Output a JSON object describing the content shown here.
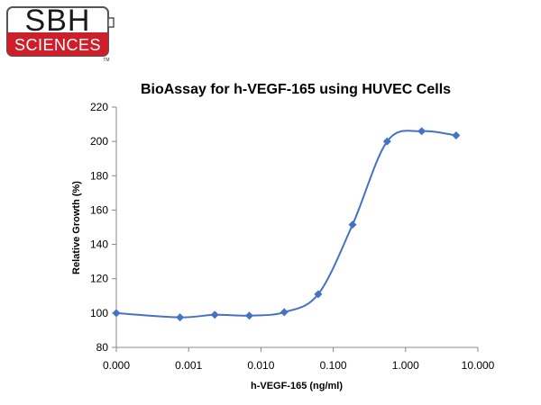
{
  "logo": {
    "top_text": "SBH",
    "bottom_text": "SCIENCES",
    "trademark": "TM",
    "colors": {
      "red": "#cc1f2a",
      "outline": "#555555"
    }
  },
  "chart_data": {
    "type": "line",
    "title": "BioAssay for h-VEGF-165 using HUVEC Cells",
    "xlabel": "h-VEGF-165 (ng/ml)",
    "ylabel": "Relative Growth (%)",
    "x_scale": "log",
    "x_tick_labels": [
      "0.000",
      "0.001",
      "0.010",
      "0.100",
      "1.000",
      "10.000"
    ],
    "y_tick_labels": [
      "80",
      "100",
      "120",
      "140",
      "160",
      "180",
      "200",
      "220"
    ],
    "ylim": [
      80,
      220
    ],
    "grid": false,
    "legend": "none",
    "series": [
      {
        "color": "#4472c4",
        "marker": "diamond",
        "smooth": true,
        "x": [
          0.0001,
          0.00076,
          0.0023,
          0.0069,
          0.021,
          0.062,
          0.185,
          0.556,
          1.67,
          5.0
        ],
        "values": [
          100,
          97.5,
          99,
          98.5,
          100.5,
          111,
          151.5,
          200,
          206,
          203.5
        ]
      }
    ]
  }
}
